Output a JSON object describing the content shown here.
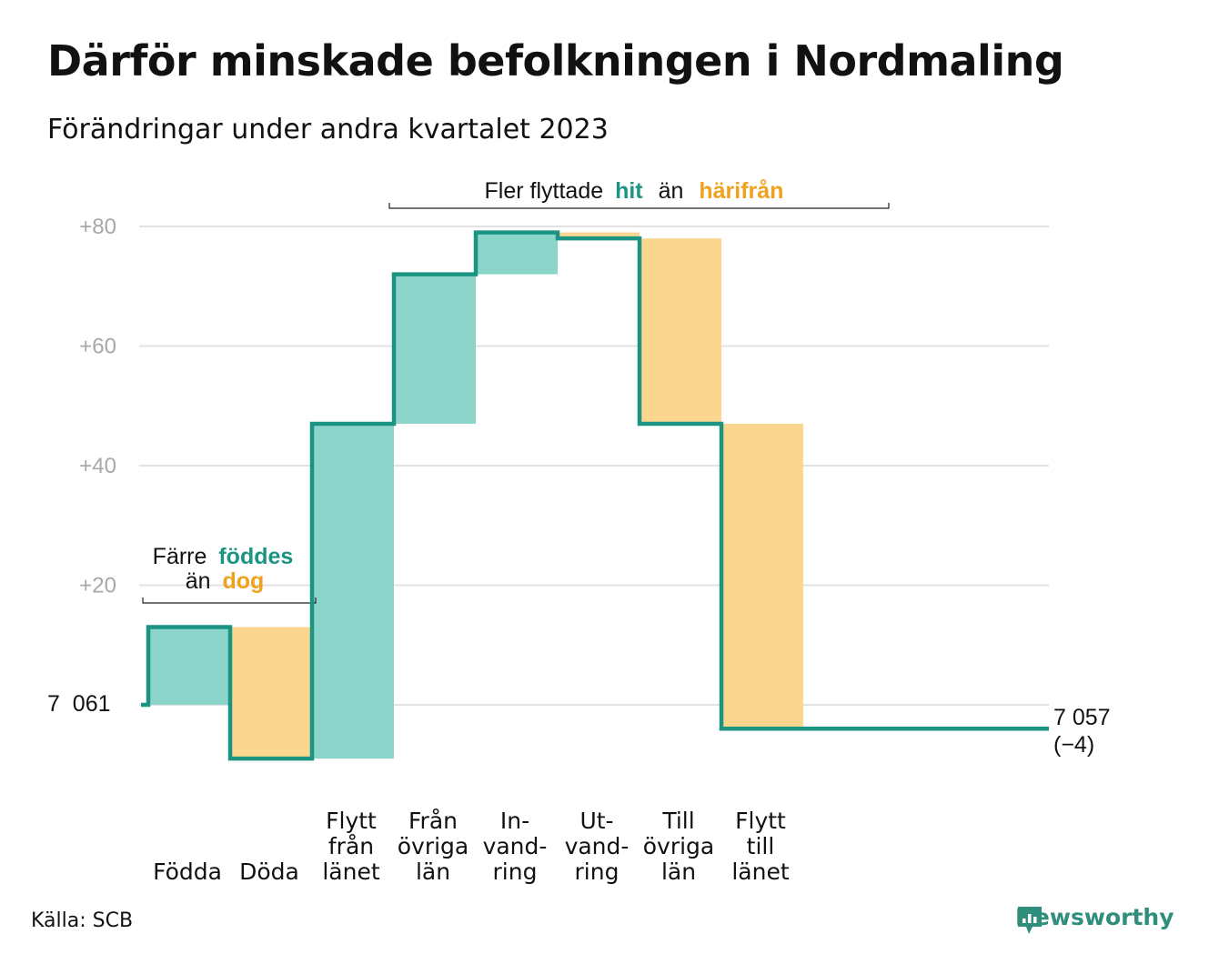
{
  "title": "Därför minskade befolkningen i Nordmaling",
  "subtitle": "Förändringar under andra kvartalet 2023",
  "source": "Källa: SCB",
  "brand": "Newsworthy",
  "colors": {
    "increase": "#8cd5cb",
    "decrease": "#fbd68e",
    "line": "#1b9484",
    "hit": "#1b9484",
    "harifran": "#eea21e",
    "grid": "#e2e2e2",
    "tick": "#a8a8a8"
  },
  "annotations": {
    "left": {
      "prefix": "Färre",
      "emph1": "föddes",
      "mid": "än",
      "emph2": "dog"
    },
    "top": {
      "prefix": "Fler flyttade",
      "emph1": "hit",
      "mid": "än",
      "emph2": "härifrån"
    }
  },
  "chart_data": {
    "type": "waterfall",
    "title": "Därför minskade befolkningen i Nordmaling",
    "subtitle": "Förändringar under andra kvartalet 2023",
    "start_value": 7061,
    "start_label": "7  061",
    "end_value": 7057,
    "end_label": "7 057",
    "end_change_label": "(−4)",
    "yticks": [
      20,
      40,
      60,
      80
    ],
    "ytick_labels": [
      "+20",
      "+40",
      "+60",
      "+80"
    ],
    "ylim": [
      -10,
      80
    ],
    "steps": [
      {
        "label": [
          "Födda"
        ],
        "value": 13,
        "kind": "increase"
      },
      {
        "label": [
          "Döda"
        ],
        "value": -22,
        "kind": "decrease"
      },
      {
        "label": [
          "Flytt",
          "från",
          "länet"
        ],
        "value": 56,
        "kind": "increase"
      },
      {
        "label": [
          "Från",
          "övriga",
          "län"
        ],
        "value": 25,
        "kind": "increase"
      },
      {
        "label": [
          "In-",
          "vand-",
          "ring"
        ],
        "value": 7,
        "kind": "increase"
      },
      {
        "label": [
          "Ut-",
          "vand-",
          "ring"
        ],
        "value": -1,
        "kind": "decrease"
      },
      {
        "label": [
          "Till",
          "övriga",
          "län"
        ],
        "value": -31,
        "kind": "decrease"
      },
      {
        "label": [
          "Flytt",
          "till",
          "länet"
        ],
        "value": -51,
        "kind": "decrease"
      }
    ]
  }
}
